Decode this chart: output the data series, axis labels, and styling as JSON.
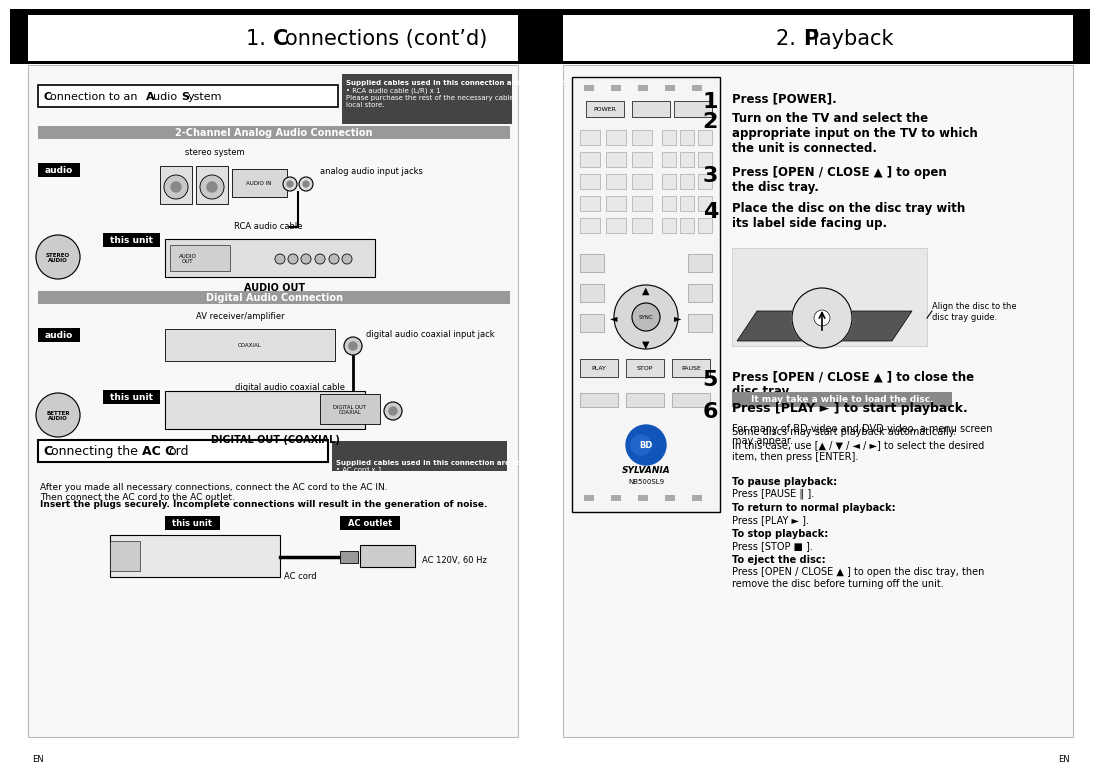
{
  "bg_color": "#ffffff",
  "black": "#000000",
  "dark_gray": "#444444",
  "medium_gray": "#888888",
  "light_gray": "#bbbbbb",
  "white": "#ffffff",
  "near_white": "#f8f8f8",
  "panel_bg": "#f2f2f2",
  "title_left": "1. C\bonnections (cont’d)",
  "title_right": "2. P\blayback",
  "title_left_display": "1. Connections (cont’d)",
  "title_right_display": "2. Playback",
  "section1_title": "Connection to an Audio System",
  "cables1_title": "Supplied cables used in this connection are as follows:",
  "cables1_body": "• RCA audio cable (L/R) x 1\nPlease purchase the rest of the necessary cables at your\nlocal store.",
  "analog_title": "2-Channel Analog Audio Connection",
  "digital_title": "Digital Audio Connection",
  "section2_title": "Connecting the AC Cord",
  "cables2_title": "Supplied cables used in this connection are as follows:",
  "cables2_body": "• AC cord x 1",
  "ac_text1": "After you made all necessary connections, connect the AC cord to the AC IN.\nThen connect the AC cord to the AC outlet.",
  "ac_text2": "Insert the plugs securely. Incomplete connections will result in the generation of noise.",
  "step1": "Press [POWER].",
  "step2": "Turn on the TV and select the\nappropriate input on the TV to which\nthe unit is connected.",
  "step3": "Press [OPEN / CLOSE ▲ ] to open\nthe disc tray.",
  "step4": "Place the disc on the disc tray with\nits label side facing up.",
  "align_note": "Align the disc to the\ndisc tray guide.",
  "step5": "Press [OPEN / CLOSE ▲ ] to close the\ndisc tray.",
  "step5_note": "It may take a while to load the disc.",
  "step5_sub": "Some discs may start playback automatically.",
  "step6": "Press [PLAY ► ] to start playback.",
  "step6_sub1": "For many of BD-video and DVD-video, a menu screen\nmay appear.",
  "step6_sub2": "In this case, use [▲ / ▼ / ◄ / ►] to select the desired\nitem, then press [ENTER].",
  "pause_label": "To pause playback:",
  "pause_val": "Press [PAUSE ‖ ].",
  "resume_label": "To return to normal playback:",
  "resume_val": "Press [PLAY ► ].",
  "stop_label": "To stop playback:",
  "stop_val": "Press [STOP ■ ].",
  "eject_label": "To eject the disc:",
  "eject_val": "Press [OPEN / CLOSE ▲ ] to open the disc tray, then\nremove the disc before turning off the unit.",
  "note_bg": "#888888",
  "note_fg": "#ffffff"
}
